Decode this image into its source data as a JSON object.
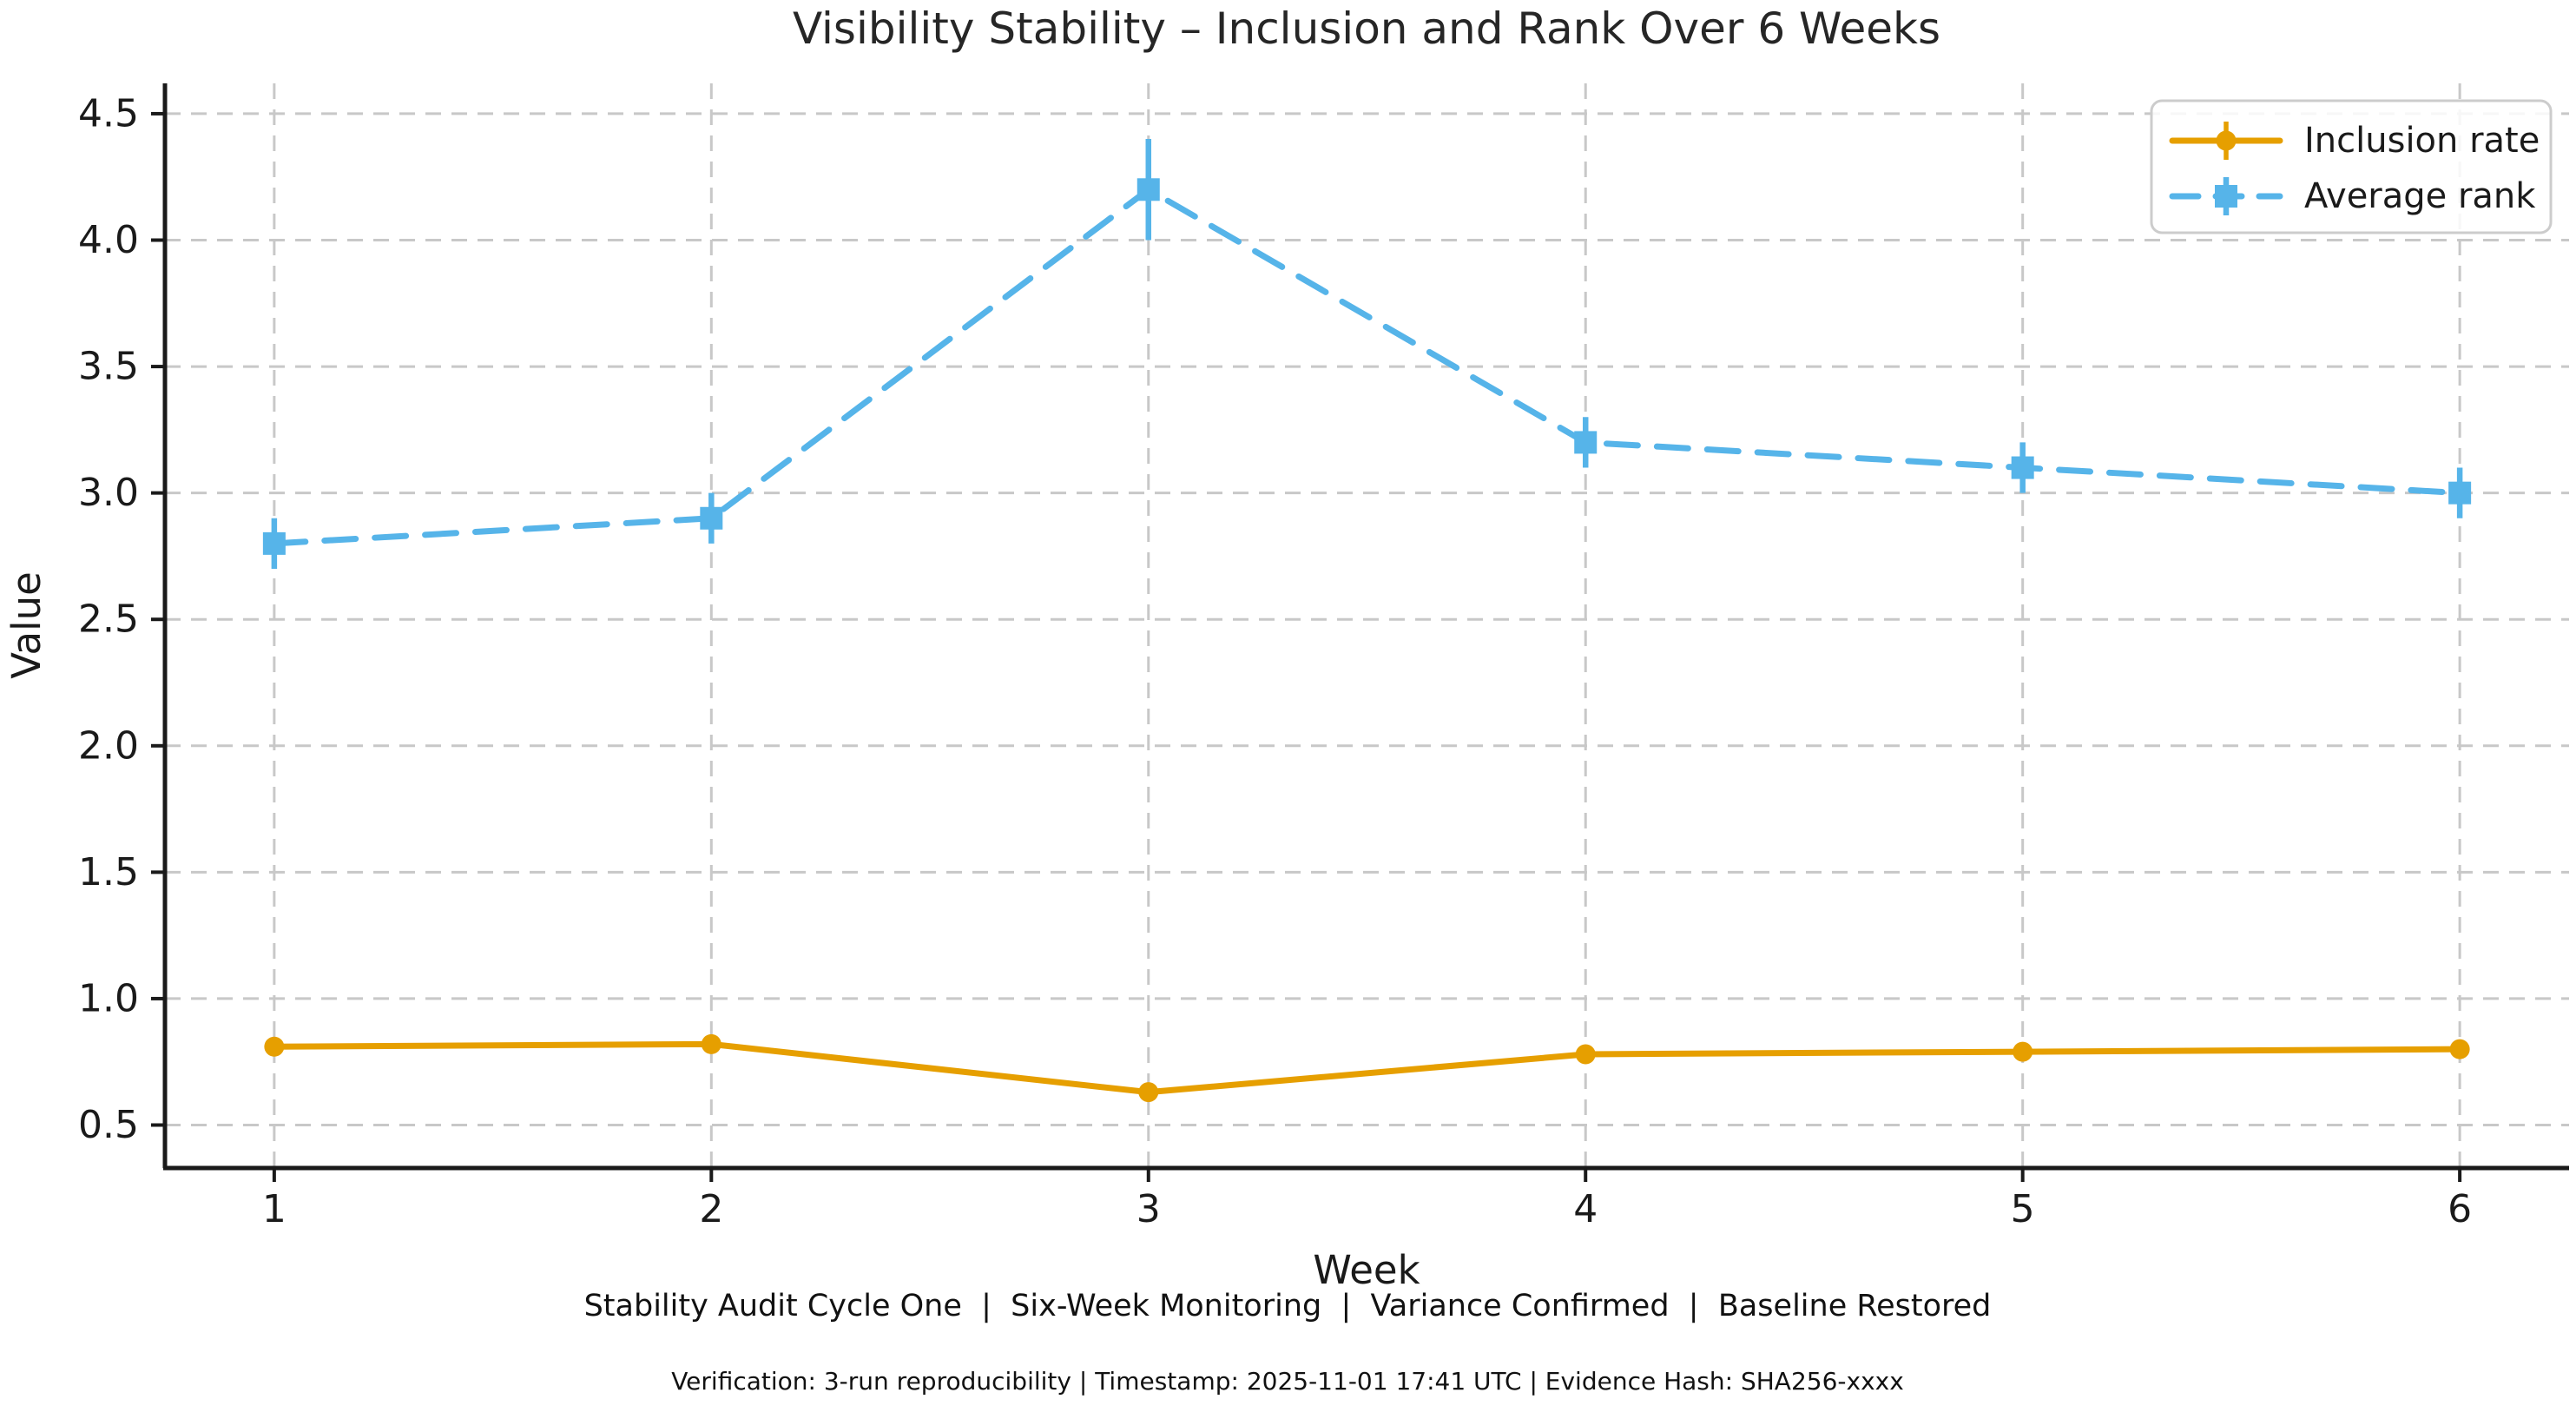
{
  "chart_data": {
    "type": "line",
    "title": "Visibility Stability – Inclusion and Rank Over 6 Weeks",
    "xlabel": "Week",
    "ylabel": "Value",
    "x": [
      1,
      2,
      3,
      4,
      5,
      6
    ],
    "xticks": [
      1,
      2,
      3,
      4,
      5,
      6
    ],
    "yticks": [
      0.5,
      1.0,
      1.5,
      2.0,
      2.5,
      3.0,
      3.5,
      4.0,
      4.5
    ],
    "xlim": [
      0.75,
      6.25
    ],
    "ylim": [
      0.33,
      4.62
    ],
    "grid": true,
    "grid_style": "dashed",
    "legend_position": "upper right",
    "series": [
      {
        "name": "Inclusion rate",
        "color": "#E69F00",
        "linestyle": "solid",
        "marker": "circle",
        "values": [
          0.81,
          0.82,
          0.63,
          0.78,
          0.79,
          0.8
        ],
        "errors": [
          0.02,
          0.02,
          0.03,
          0.02,
          0.02,
          0.02
        ]
      },
      {
        "name": "Average rank",
        "color": "#56B4E9",
        "linestyle": "dashed",
        "marker": "square",
        "values": [
          2.8,
          2.9,
          4.2,
          3.2,
          3.1,
          3.0
        ],
        "errors": [
          0.1,
          0.1,
          0.2,
          0.1,
          0.1,
          0.1
        ]
      }
    ],
    "footnote": "Stability Audit Cycle One  |  Six-Week Monitoring  |  Variance Confirmed  |  Baseline Restored",
    "verification": "Verification: 3-run reproducibility | Timestamp: 2025-11-01 17:41 UTC | Evidence Hash: SHA256-xxxx"
  },
  "colors": {
    "grid": "#c8c8c8",
    "spine": "#1a1a1a",
    "text": "#1a1a1a",
    "legend_border": "#cccccc",
    "background": "#ffffff"
  }
}
